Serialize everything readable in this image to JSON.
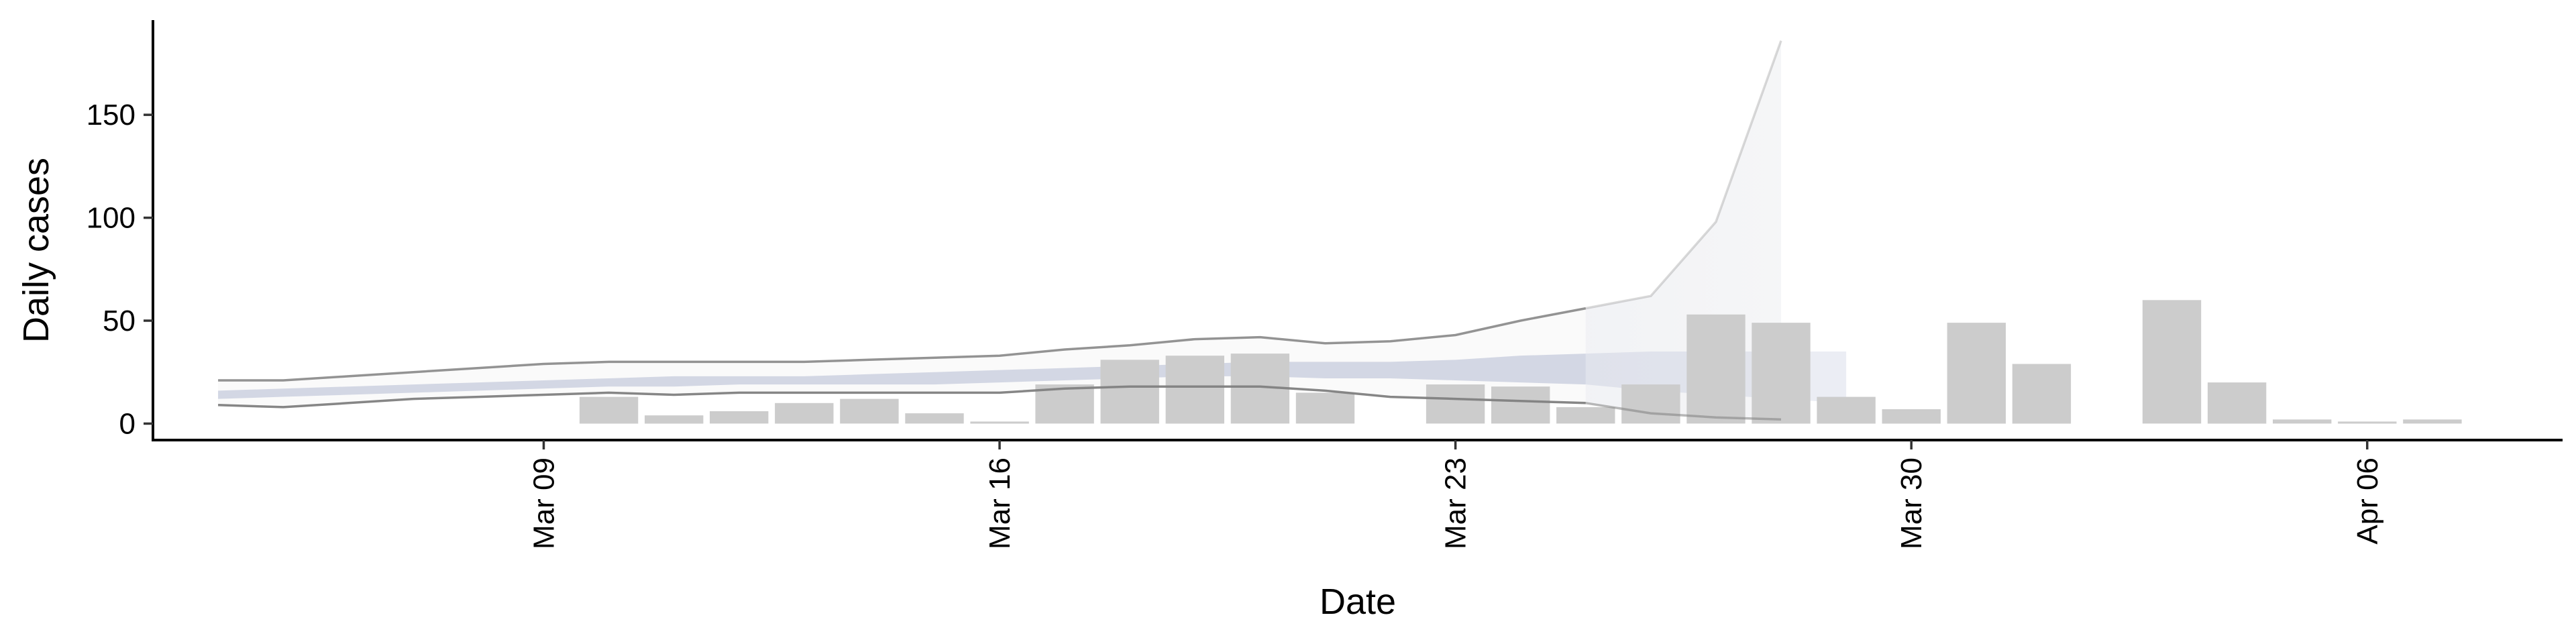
{
  "chart_data": {
    "type": "bar",
    "title": "",
    "xlabel": "Date",
    "ylabel": "Daily cases",
    "x_ticks": [
      {
        "date": "2020-03-09",
        "label": "Mar 09"
      },
      {
        "date": "2020-03-16",
        "label": "Mar 16"
      },
      {
        "date": "2020-03-23",
        "label": "Mar 23"
      },
      {
        "date": "2020-03-30",
        "label": "Mar 30"
      },
      {
        "date": "2020-04-06",
        "label": "Apr 06"
      }
    ],
    "xlim": [
      "2020-03-03",
      "2020-04-09"
    ],
    "y_ticks": [
      0,
      50,
      100,
      150
    ],
    "ylim": [
      -8,
      196
    ],
    "grid": false,
    "legend": "none",
    "bars": {
      "color": "#cccccc",
      "points": [
        {
          "date": "2020-03-10",
          "value": 13
        },
        {
          "date": "2020-03-11",
          "value": 4
        },
        {
          "date": "2020-03-12",
          "value": 6
        },
        {
          "date": "2020-03-13",
          "value": 10
        },
        {
          "date": "2020-03-14",
          "value": 12
        },
        {
          "date": "2020-03-15",
          "value": 5
        },
        {
          "date": "2020-03-16",
          "value": 1
        },
        {
          "date": "2020-03-17",
          "value": 19
        },
        {
          "date": "2020-03-18",
          "value": 31
        },
        {
          "date": "2020-03-19",
          "value": 33
        },
        {
          "date": "2020-03-20",
          "value": 34
        },
        {
          "date": "2020-03-21",
          "value": 15
        },
        {
          "date": "2020-03-23",
          "value": 19
        },
        {
          "date": "2020-03-24",
          "value": 18
        },
        {
          "date": "2020-03-25",
          "value": 8
        },
        {
          "date": "2020-03-26",
          "value": 19
        },
        {
          "date": "2020-03-27",
          "value": 53
        },
        {
          "date": "2020-03-28",
          "value": 49
        },
        {
          "date": "2020-03-29",
          "value": 13
        },
        {
          "date": "2020-03-30",
          "value": 7
        },
        {
          "date": "2020-03-31",
          "value": 49
        },
        {
          "date": "2020-04-01",
          "value": 29
        },
        {
          "date": "2020-04-03",
          "value": 60
        },
        {
          "date": "2020-04-04",
          "value": 20
        },
        {
          "date": "2020-04-05",
          "value": 2
        },
        {
          "date": "2020-04-06",
          "value": 1
        },
        {
          "date": "2020-04-07",
          "value": 2
        }
      ]
    },
    "estimate": {
      "dates": [
        "2020-03-04",
        "2020-03-05",
        "2020-03-06",
        "2020-03-07",
        "2020-03-08",
        "2020-03-09",
        "2020-03-10",
        "2020-03-11",
        "2020-03-12",
        "2020-03-13",
        "2020-03-14",
        "2020-03-15",
        "2020-03-16",
        "2020-03-17",
        "2020-03-18",
        "2020-03-19",
        "2020-03-20",
        "2020-03-21",
        "2020-03-22",
        "2020-03-23",
        "2020-03-24",
        "2020-03-25",
        "2020-03-26",
        "2020-03-27",
        "2020-03-28",
        "2020-03-29"
      ],
      "upper_90": [
        21,
        21,
        23,
        25,
        27,
        29,
        30,
        30,
        30,
        30,
        31,
        32,
        33,
        36,
        38,
        41,
        42,
        39,
        40,
        43,
        50,
        56,
        62,
        98,
        186,
        null
      ],
      "lower_90": [
        9,
        8,
        10,
        12,
        13,
        14,
        15,
        14,
        15,
        15,
        15,
        15,
        15,
        17,
        18,
        18,
        18,
        16,
        13,
        12,
        11,
        10,
        5,
        3,
        2,
        null
      ],
      "upper_50": [
        16,
        17,
        18,
        19,
        20,
        21,
        22,
        23,
        23,
        23,
        24,
        25,
        26,
        27,
        28,
        29,
        30,
        30,
        30,
        31,
        33,
        34,
        35,
        35,
        35,
        35
      ],
      "lower_50": [
        12,
        13,
        14,
        15,
        16,
        17,
        18,
        18,
        19,
        19,
        19,
        19,
        20,
        21,
        22,
        23,
        23,
        22,
        22,
        21,
        20,
        19,
        16,
        14,
        12,
        10
      ],
      "band_color": "#8390b8",
      "line_color": "#808080",
      "forecast_start": "2020-03-25"
    }
  }
}
